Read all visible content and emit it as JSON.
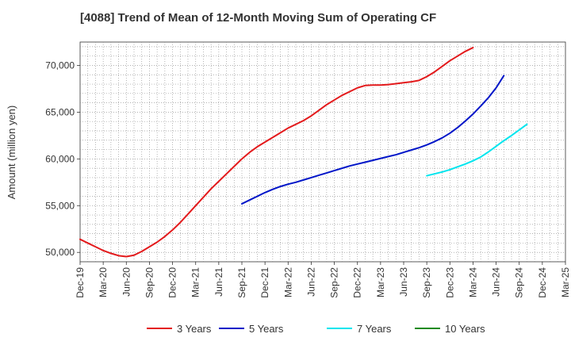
{
  "chart_data": {
    "type": "line",
    "title": "[4088]  Trend of Mean of 12-Month Moving Sum of Operating CF",
    "xlabel": "",
    "ylabel": "Amount (million yen)",
    "ylim": [
      49000,
      72500
    ],
    "yticks": [
      50000,
      55000,
      60000,
      65000,
      70000
    ],
    "ytick_labels": [
      "50,000",
      "55,000",
      "60,000",
      "65,000",
      "70,000"
    ],
    "xtick_labels": [
      "Dec-19",
      "Mar-20",
      "Jun-20",
      "Sep-20",
      "Dec-20",
      "Mar-21",
      "Jun-21",
      "Sep-21",
      "Dec-21",
      "Mar-22",
      "Jun-22",
      "Sep-22",
      "Dec-22",
      "Mar-23",
      "Jun-23",
      "Sep-23",
      "Dec-23",
      "Mar-24",
      "Jun-24",
      "Sep-24",
      "Dec-24",
      "Mar-25"
    ],
    "grid": true,
    "legend_position": "bottom",
    "series": [
      {
        "name": "3 Years",
        "color": "#e31a1c",
        "start_index": 0,
        "values": [
          51400,
          51000,
          50600,
          50200,
          49900,
          49650,
          49550,
          49700,
          50100,
          50600,
          51100,
          51700,
          52400,
          53200,
          54100,
          55000,
          55900,
          56800,
          57600,
          58400,
          59200,
          60000,
          60700,
          61300,
          61800,
          62300,
          62800,
          63300,
          63700,
          64100,
          64600,
          65200,
          65800,
          66300,
          66800,
          67200,
          67600,
          67850,
          67900,
          67900,
          67950,
          68050,
          68150,
          68250,
          68400,
          68800,
          69300,
          69900,
          70500,
          71000,
          71500,
          71900
        ]
      },
      {
        "name": "5 Years",
        "color": "#0015c8",
        "start_index": 21,
        "values": [
          55200,
          55600,
          56000,
          56400,
          56750,
          57050,
          57300,
          57500,
          57750,
          58000,
          58250,
          58500,
          58750,
          59000,
          59250,
          59450,
          59650,
          59850,
          60050,
          60250,
          60450,
          60700,
          60950,
          61200,
          61500,
          61850,
          62250,
          62750,
          63350,
          64050,
          64800,
          65650,
          66550,
          67600,
          68900
        ]
      },
      {
        "name": "7 Years",
        "color": "#00e5ee",
        "start_index": 45,
        "values": [
          58200,
          58400,
          58600,
          58850,
          59150,
          59450,
          59800,
          60200,
          60750,
          61350,
          61950,
          62500,
          63100,
          63700
        ]
      },
      {
        "name": "10 Years",
        "color": "#1a8a1a",
        "start_index": 0,
        "values": []
      }
    ]
  }
}
